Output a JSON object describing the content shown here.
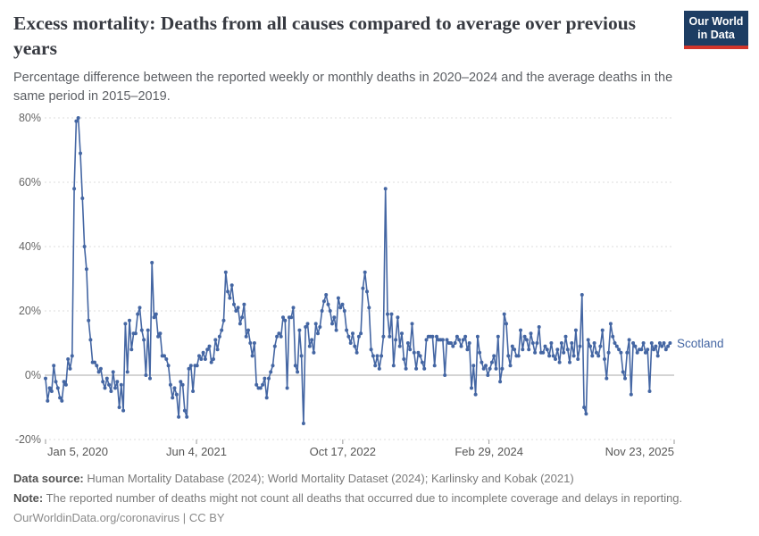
{
  "header": {
    "title": "Excess mortality: Deaths from all causes compared to average over previous years",
    "subtitle": "Percentage difference between the reported weekly or monthly deaths in 2020–2024 and the average deaths in the same period in 2015–2019.",
    "logo": {
      "line1": "Our World",
      "line2": "in Data",
      "bg_color": "#1d3d63",
      "accent_color": "#d1352b"
    }
  },
  "chart_data": {
    "type": "line",
    "title": "Excess mortality: Deaths from all causes compared to average over previous years",
    "unit": "%",
    "x_axis": {
      "start_date": "Jan 5, 2020",
      "interval": "weekly",
      "total_days": 2149,
      "ticks": [
        {
          "label": "Jan 5, 2020",
          "day": 0
        },
        {
          "label": "Jun 4, 2021",
          "day": 516
        },
        {
          "label": "Oct 17, 2022",
          "day": 1016
        },
        {
          "label": "Feb 29, 2024",
          "day": 1516
        },
        {
          "label": "Nov 23, 2025",
          "day": 2149
        }
      ]
    },
    "y_axis": {
      "min": -20,
      "max": 80,
      "grid": "dashed",
      "ticks": [
        {
          "label": "80%",
          "value": 80
        },
        {
          "label": "60%",
          "value": 60
        },
        {
          "label": "40%",
          "value": 40
        },
        {
          "label": "20%",
          "value": 20
        },
        {
          "label": "0%",
          "value": 0
        },
        {
          "label": "-20%",
          "value": -20
        }
      ]
    },
    "series": [
      {
        "name": "Scotland",
        "color": "#4466a3",
        "values": [
          -1,
          -8,
          -4,
          -5,
          3,
          -2,
          -4,
          -7,
          -8,
          -2,
          -3,
          5,
          2,
          6,
          58,
          79,
          80,
          69,
          55,
          40,
          33,
          17,
          11,
          4,
          4,
          3,
          1,
          2,
          -2,
          -4,
          -1,
          -3,
          -5,
          1,
          -4,
          -2,
          -10,
          -3,
          -11,
          16,
          1,
          17,
          8,
          13,
          13,
          19,
          21,
          14,
          11,
          0,
          14,
          -1,
          35,
          18,
          19,
          12,
          13,
          6,
          6,
          5,
          3,
          -3,
          -7,
          -4,
          -6,
          -13,
          -2,
          -3,
          -11,
          -13,
          2,
          3,
          -5,
          3,
          3,
          6,
          5,
          7,
          5,
          8,
          9,
          4,
          5,
          11,
          8,
          12,
          14,
          17,
          32,
          26,
          24,
          28,
          22,
          20,
          21,
          16,
          18,
          22,
          12,
          14,
          10,
          6,
          10,
          -3,
          -4,
          -4,
          -3,
          -1,
          -7,
          -1,
          1,
          3,
          9,
          12,
          13,
          12,
          18,
          17,
          -4,
          18,
          18,
          21,
          3,
          1,
          14,
          6,
          -15,
          15,
          16,
          9,
          11,
          7,
          16,
          13,
          15,
          20,
          23,
          25,
          22,
          20,
          16,
          18,
          14,
          24,
          21,
          22,
          20,
          14,
          12,
          10,
          13,
          9,
          7,
          12,
          13,
          27,
          32,
          26,
          21,
          8,
          6,
          3,
          6,
          2,
          6,
          12,
          58,
          19,
          12,
          19,
          3,
          11,
          18,
          9,
          13,
          5,
          2,
          10,
          8,
          16,
          7,
          2,
          7,
          6,
          4,
          2,
          11,
          12,
          12,
          12,
          3,
          12,
          11,
          11,
          11,
          0,
          11,
          10,
          10,
          9,
          10,
          12,
          11,
          9,
          11,
          12,
          8,
          10,
          -4,
          3,
          -6,
          12,
          7,
          4,
          2,
          3,
          0,
          2,
          4,
          6,
          2,
          12,
          -2,
          2,
          19,
          16,
          6,
          3,
          9,
          8,
          6,
          6,
          14,
          8,
          12,
          11,
          8,
          13,
          10,
          7,
          10,
          15,
          7,
          7,
          9,
          8,
          6,
          10,
          6,
          5,
          8,
          4,
          10,
          7,
          12,
          8,
          4,
          10,
          6,
          14,
          5,
          9,
          25,
          -10,
          -12,
          11,
          9,
          6,
          10,
          7,
          6,
          9,
          14,
          5,
          -1,
          7,
          16,
          12,
          10,
          9,
          8,
          7,
          1,
          -1,
          7,
          11,
          -6,
          10,
          9,
          7,
          8,
          8,
          10,
          7,
          8,
          -5,
          10,
          8,
          9,
          6,
          10,
          9,
          10,
          8,
          9,
          10
        ]
      }
    ]
  },
  "footer": {
    "data_source_label": "Data source:",
    "data_source": "Human Mortality Database (2024); World Mortality Dataset (2024); Karlinsky and Kobak (2021)",
    "note_label": "Note:",
    "note": "The reported number of deaths might not count all deaths that occurred due to incomplete coverage and delays in reporting.",
    "link": "OurWorldinData.org/coronavirus",
    "separator": "|",
    "license": "CC BY"
  }
}
